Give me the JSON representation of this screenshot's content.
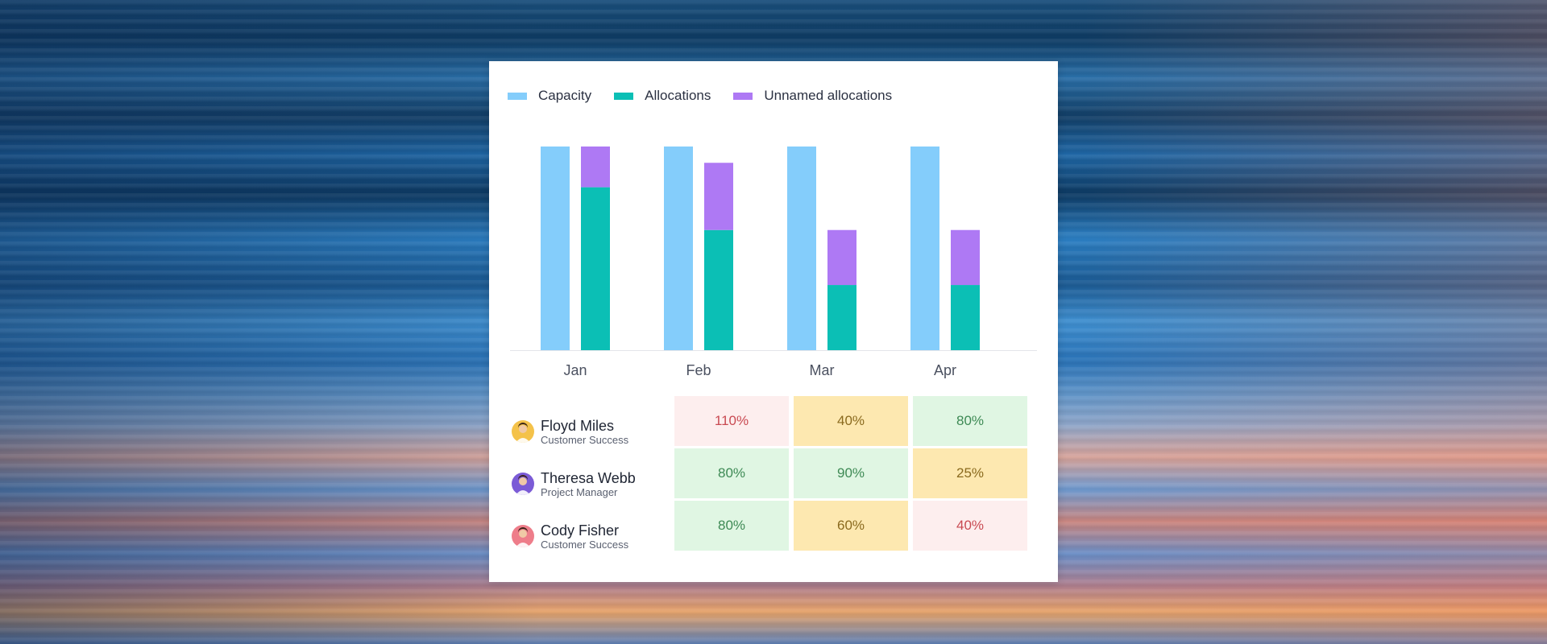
{
  "colors": {
    "capacity": "#84cdfb",
    "allocations": "#0bbfb5",
    "unnamed": "#ae79f4",
    "cell_red_bg": "#fdeeee",
    "cell_red_text": "#c94a52",
    "cell_yellow_bg": "#fde8b0",
    "cell_yellow_text": "#8a6a1e",
    "cell_green_bg": "#e0f6e3",
    "cell_green_text": "#3e8a55"
  },
  "chart_data": {
    "type": "bar",
    "categories": [
      "Jan",
      "Feb",
      "Mar",
      "Apr"
    ],
    "series": [
      {
        "name": "Capacity",
        "values": [
          100,
          100,
          100,
          100
        ]
      },
      {
        "name": "Allocations",
        "values": [
          80,
          59,
          32,
          32
        ]
      },
      {
        "name": "Unnamed allocations",
        "values": [
          20,
          33,
          27,
          27
        ]
      }
    ],
    "stacked_series": [
      "Allocations",
      "Unnamed allocations"
    ],
    "ylim": [
      0,
      100
    ],
    "legend_position": "top-left",
    "grid": false
  },
  "people": [
    {
      "name": "Floyd Miles",
      "role": "Customer Success",
      "avatar_icon": "person-avatar-icon",
      "avatar_bg": "#f4c24a",
      "cells": [
        {
          "text": "110%",
          "status": "red"
        },
        {
          "text": "40%",
          "status": "yellow"
        },
        {
          "text": "80%",
          "status": "green"
        }
      ]
    },
    {
      "name": "Theresa Webb",
      "role": "Project Manager",
      "avatar_icon": "person-avatar-icon",
      "avatar_bg": "#7b5bd6",
      "cells": [
        {
          "text": "80%",
          "status": "green"
        },
        {
          "text": "90%",
          "status": "green"
        },
        {
          "text": "25%",
          "status": "yellow"
        }
      ]
    },
    {
      "name": "Cody Fisher",
      "role": "Customer Success",
      "avatar_icon": "person-avatar-icon",
      "avatar_bg": "#ee7d8a",
      "cells": [
        {
          "text": "80%",
          "status": "green"
        },
        {
          "text": "60%",
          "status": "yellow"
        },
        {
          "text": "40%",
          "status": "red"
        }
      ]
    }
  ]
}
